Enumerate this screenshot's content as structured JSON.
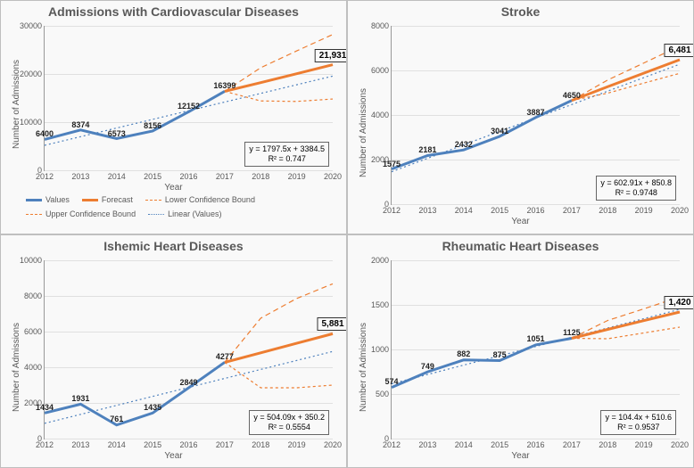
{
  "common": {
    "ylabel": "Number of Admissions",
    "xlabel": "Year",
    "years": [
      2012,
      2013,
      2014,
      2015,
      2016,
      2017,
      2018,
      2019,
      2020
    ],
    "label_fontsize": 10,
    "tick_fontsize": 9,
    "title_fontsize": 14,
    "colors": {
      "values_line": "#4e81bd",
      "forecast_line": "#ed7d31",
      "lower_bound": "#ed7d31",
      "upper_bound": "#ed7d31",
      "linear_trend": "#4e81bd",
      "grid": "#e0e0e0",
      "axis": "#999999",
      "background": "#f9f9f9",
      "text": "#595959"
    },
    "line_widths": {
      "values": 3,
      "forecast": 3,
      "bounds": 1.2,
      "linear": 1.2
    },
    "dash": {
      "bounds": "3,3",
      "linear_small": "2,3",
      "upper_long": "6,4"
    },
    "legend": {
      "items": [
        {
          "label": "Values",
          "color": "#4e81bd",
          "width": 3,
          "dash": "none"
        },
        {
          "label": "Forecast",
          "color": "#ed7d31",
          "width": 3,
          "dash": "none"
        },
        {
          "label": "Lower Confidence Bound",
          "color": "#ed7d31",
          "width": 1.2,
          "dash": "3,3"
        },
        {
          "label": "Upper Confidence Bound",
          "color": "#ed7d31",
          "width": 1.2,
          "dash": "6,4"
        },
        {
          "label": "Linear (Values)",
          "color": "#4e81bd",
          "width": 1.2,
          "dash": "2,3"
        }
      ]
    }
  },
  "panels": [
    {
      "key": "cvd",
      "title": "Admissions with Cardiovascular Diseases",
      "ylim": [
        0,
        30000
      ],
      "ytick_step": 10000,
      "values_x": [
        2012,
        2013,
        2014,
        2015,
        2016,
        2017
      ],
      "values_y": [
        6400,
        8374,
        6573,
        8156,
        12152,
        16399
      ],
      "data_labels": [
        "6400",
        "8374",
        "6573",
        "8156",
        "12152",
        "16399"
      ],
      "forecast_x": [
        2017,
        2018,
        2019,
        2020
      ],
      "forecast_y": [
        16399,
        18200,
        20050,
        21931
      ],
      "forecast_end_label": "21,931",
      "lower_x": [
        2017,
        2018,
        2019,
        2020
      ],
      "lower_y": [
        16399,
        14400,
        14300,
        14800
      ],
      "upper_x": [
        2017,
        2018,
        2019,
        2020
      ],
      "upper_y": [
        16399,
        21300,
        24800,
        28200
      ],
      "linear_start": [
        2012,
        5182
      ],
      "linear_end": [
        2020,
        19562
      ],
      "equation": "y = 1797.5x + 3384.5",
      "r2": "R² = 0.747",
      "eq_pos": "br",
      "show_legend": true
    },
    {
      "key": "stroke",
      "title": "Stroke",
      "ylim": [
        0,
        8000
      ],
      "ytick_step": 2000,
      "values_x": [
        2012,
        2013,
        2014,
        2015,
        2016,
        2017
      ],
      "values_y": [
        1575,
        2181,
        2432,
        3041,
        3887,
        4650
      ],
      "data_labels": [
        "1575",
        "2181",
        "2432",
        "3041",
        "3887",
        "4650"
      ],
      "forecast_x": [
        2017,
        2018,
        2019,
        2020
      ],
      "forecast_y": [
        4650,
        5270,
        5876,
        6481
      ],
      "forecast_end_label": "6,481",
      "lower_x": [
        2017,
        2018,
        2019,
        2020
      ],
      "lower_y": [
        4650,
        4980,
        5430,
        5870
      ],
      "upper_x": [
        2017,
        2018,
        2019,
        2020
      ],
      "upper_y": [
        4650,
        5570,
        6330,
        7100
      ],
      "linear_start": [
        2012,
        1454
      ],
      "linear_end": [
        2020,
        6277
      ],
      "equation": "y = 602.91x + 850.8",
      "r2": "R² = 0.9748",
      "eq_pos": "br"
    },
    {
      "key": "ihd",
      "title": "Ishemic Heart Diseases",
      "ylim": [
        0,
        10000
      ],
      "ytick_step": 2000,
      "values_x": [
        2012,
        2013,
        2014,
        2015,
        2016,
        2017
      ],
      "values_y": [
        1434,
        1931,
        761,
        1435,
        2849,
        4277
      ],
      "data_labels": [
        "1434",
        "1931",
        "761",
        "1435",
        "2849",
        "4277"
      ],
      "forecast_x": [
        2017,
        2018,
        2019,
        2020
      ],
      "forecast_y": [
        4277,
        4810,
        5345,
        5881
      ],
      "forecast_end_label": "5,881",
      "lower_x": [
        2017,
        2018,
        2019,
        2020
      ],
      "lower_y": [
        4277,
        2850,
        2850,
        3000
      ],
      "upper_x": [
        2017,
        2018,
        2019,
        2020
      ],
      "upper_y": [
        4277,
        6750,
        7860,
        8680
      ],
      "linear_start": [
        2012,
        854
      ],
      "linear_end": [
        2020,
        4887
      ],
      "equation": "y = 504.09x + 350.2",
      "r2": "R² = 0.5554",
      "eq_pos": "br"
    },
    {
      "key": "rhd",
      "title": "Rheumatic Heart Diseases",
      "ylim": [
        0,
        2000
      ],
      "ytick_step": 500,
      "values_x": [
        2012,
        2013,
        2014,
        2015,
        2016,
        2017
      ],
      "values_y": [
        574,
        749,
        882,
        875,
        1051,
        1125
      ],
      "data_labels": [
        "574",
        "749",
        "882",
        "875",
        "1051",
        "1125"
      ],
      "forecast_x": [
        2017,
        2018,
        2019,
        2020
      ],
      "forecast_y": [
        1125,
        1225,
        1323,
        1420
      ],
      "forecast_end_label": "1,420",
      "lower_x": [
        2017,
        2018,
        2019,
        2020
      ],
      "lower_y": [
        1125,
        1120,
        1185,
        1250
      ],
      "upper_x": [
        2017,
        2018,
        2019,
        2020
      ],
      "upper_y": [
        1125,
        1325,
        1455,
        1590
      ],
      "linear_start": [
        2012,
        615
      ],
      "linear_end": [
        2020,
        1450
      ],
      "equation": "y = 104.4x + 510.6",
      "r2": "R² = 0.9537",
      "eq_pos": "br"
    }
  ]
}
